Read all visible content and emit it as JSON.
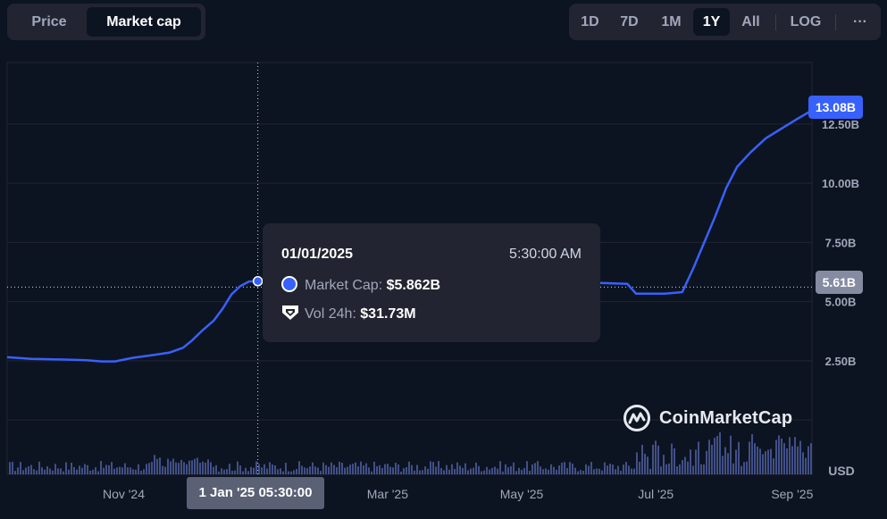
{
  "tabs": {
    "price": "Price",
    "market_cap": "Market cap"
  },
  "ranges": [
    "1D",
    "7D",
    "1M",
    "1Y",
    "All",
    "LOG",
    "···"
  ],
  "active_range": "1Y",
  "colors": {
    "line": "#3861fb",
    "volume": "#4b5a9a",
    "background": "#0d1421",
    "panel": "#222531"
  },
  "tooltip": {
    "date": "01/01/2025",
    "time": "5:30:00 AM",
    "market_cap_label": "Market Cap:",
    "market_cap_value": "$5.862B",
    "volume_label": "Vol 24h:",
    "volume_value": "$31.73M"
  },
  "price_tags": {
    "last": "13.08B",
    "hover": "5.61B"
  },
  "x_hover_label": "1 Jan '25 05:30:00",
  "watermark": "CoinMarketCap",
  "chart_data": {
    "type": "line",
    "unit": "USD",
    "y_ticks": [
      "2.50B",
      "5.00B",
      "7.50B",
      "10.00B",
      "12.50B"
    ],
    "y_tick_values": [
      2.5,
      5.0,
      7.5,
      10.0,
      12.5
    ],
    "ylim": [
      -2.3,
      15.1
    ],
    "x_ticks": [
      "Nov '24",
      "Mar '25",
      "May '25",
      "Jul '25",
      "Sep '25"
    ],
    "xlim": [
      "2024-09-09",
      "2025-09-10"
    ],
    "x_tick_dates": [
      "2024-11-01",
      "2025-03-01",
      "2025-05-01",
      "2025-07-01",
      "2025-09-01"
    ],
    "grid": true,
    "series": [
      {
        "values_unit": "billion USD",
        "points": [
          [
            "2024-09-09",
            2.65
          ],
          [
            "2024-09-20",
            2.58
          ],
          [
            "2024-10-05",
            2.55
          ],
          [
            "2024-10-15",
            2.52
          ],
          [
            "2024-10-22",
            2.47
          ],
          [
            "2024-10-28",
            2.47
          ],
          [
            "2024-11-05",
            2.62
          ],
          [
            "2024-11-15",
            2.75
          ],
          [
            "2024-11-22",
            2.85
          ],
          [
            "2024-11-28",
            3.05
          ],
          [
            "2024-12-02",
            3.35
          ],
          [
            "2024-12-07",
            3.8
          ],
          [
            "2024-12-12",
            4.2
          ],
          [
            "2024-12-16",
            4.7
          ],
          [
            "2024-12-20",
            5.3
          ],
          [
            "2024-12-24",
            5.65
          ],
          [
            "2024-12-28",
            5.85
          ],
          [
            "2025-01-01",
            5.86
          ],
          [
            "2025-01-10",
            5.8
          ],
          [
            "2025-02-15",
            5.8
          ],
          [
            "2025-04-01",
            5.8
          ],
          [
            "2025-05-15",
            5.8
          ],
          [
            "2025-06-01",
            5.8
          ],
          [
            "2025-06-18",
            5.75
          ],
          [
            "2025-06-22",
            5.33
          ],
          [
            "2025-07-05",
            5.33
          ],
          [
            "2025-07-13",
            5.4
          ],
          [
            "2025-07-18",
            6.4
          ],
          [
            "2025-07-23",
            7.5
          ],
          [
            "2025-07-28",
            8.6
          ],
          [
            "2025-08-02",
            9.8
          ],
          [
            "2025-08-07",
            10.7
          ],
          [
            "2025-08-13",
            11.3
          ],
          [
            "2025-08-20",
            11.9
          ],
          [
            "2025-08-27",
            12.3
          ],
          [
            "2025-09-03",
            12.7
          ],
          [
            "2025-09-10",
            13.08
          ]
        ]
      }
    ]
  }
}
